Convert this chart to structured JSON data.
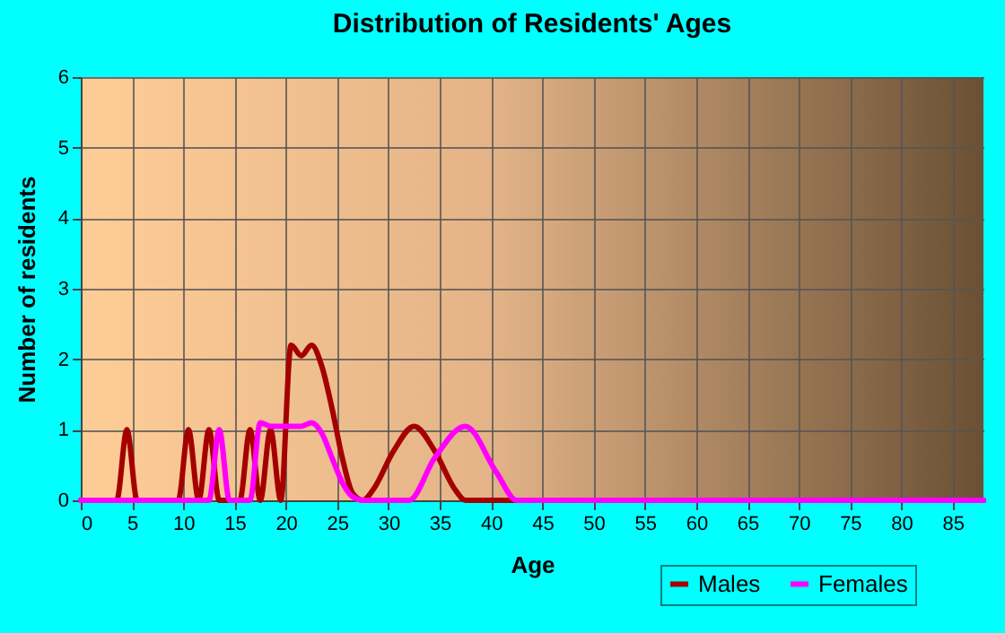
{
  "chart_data": {
    "type": "line",
    "title": "Distribution of Residents' Ages",
    "xlabel": "Age",
    "ylabel": "Number of residents",
    "xlim": [
      0,
      88
    ],
    "xticks": [
      0,
      5,
      10,
      15,
      20,
      25,
      30,
      35,
      40,
      45,
      50,
      55,
      60,
      65,
      70,
      75,
      80,
      85
    ],
    "ylim": [
      0,
      6
    ],
    "yticks": [
      0,
      1,
      2,
      3,
      4,
      5,
      6
    ],
    "grid": true,
    "legend": "bottom right",
    "marker": "none",
    "line_style": "solid",
    "series": [
      {
        "name": "Males",
        "color": "#a50000",
        "x": [
          0,
          3.5,
          4.5,
          5.5,
          9.5,
          10.5,
          11.5,
          12.5,
          13.5,
          15.5,
          16.5,
          17.5,
          18.5,
          19.5,
          20.5,
          21.5,
          22.5,
          23.5,
          24.5,
          25.5,
          26.5,
          27.5,
          28.5,
          30.5,
          32.5,
          34.5,
          36.5,
          37.5,
          88
        ],
        "values": [
          0,
          0,
          1,
          0,
          0,
          1,
          0,
          1,
          0,
          0,
          1,
          0,
          1,
          0,
          2.2,
          2.05,
          2.2,
          1.9,
          1.3,
          0.6,
          0.1,
          0,
          0.15,
          0.7,
          1.05,
          0.7,
          0.15,
          0,
          0
        ]
      },
      {
        "name": "Females",
        "color": "#ff00ff",
        "x": [
          0,
          12.5,
          13.5,
          14.5,
          16.5,
          17.5,
          18.5,
          19.5,
          20.5,
          21.5,
          22.5,
          23.5,
          24.5,
          25.5,
          26.5,
          27.5,
          32,
          34.5,
          37.5,
          40.5,
          42.5,
          88
        ],
        "values": [
          0,
          0,
          1,
          0,
          0,
          1.1,
          1.05,
          1.05,
          1.05,
          1.05,
          1.1,
          0.95,
          0.6,
          0.25,
          0.05,
          0,
          0,
          0.6,
          1.05,
          0.4,
          0,
          0
        ]
      }
    ]
  }
}
